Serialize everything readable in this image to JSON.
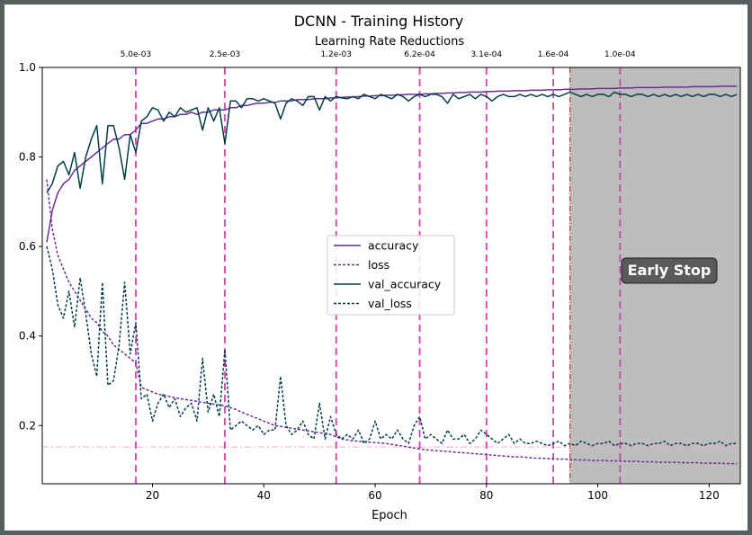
{
  "chart_data": {
    "type": "line",
    "title": "DCNN - Training History",
    "subtitle": "Learning Rate Reductions",
    "xlabel": "Epoch",
    "ylabel": "",
    "xlim": [
      0.2,
      125.6
    ],
    "ylim": [
      0.07,
      1.0
    ],
    "x_ticks": [
      20,
      40,
      60,
      80,
      100,
      120
    ],
    "y_ticks": [
      0.2,
      0.4,
      0.6,
      0.8,
      1.0
    ],
    "grid": false,
    "legend_position": "center",
    "reference_line": {
      "y": 0.152,
      "color": "#f4a6d0"
    },
    "early_stop": {
      "epoch": 95,
      "label": "Early Stop",
      "shade_color": "#bdbdbd",
      "label_bg": "#5a5a5a"
    },
    "lr_reductions": [
      {
        "epoch": 17,
        "label": "5.0e-03"
      },
      {
        "epoch": 33,
        "label": "2.5e-03"
      },
      {
        "epoch": 53,
        "label": "1.2e-03"
      },
      {
        "epoch": 68,
        "label": "6.2e-04"
      },
      {
        "epoch": 80,
        "label": "3.1e-04"
      },
      {
        "epoch": 92,
        "label": "1.6e-04"
      },
      {
        "epoch": 104,
        "label": "1.0e-04"
      }
    ],
    "lr_line_color": "#d63fb4",
    "x_start": 1,
    "series": [
      {
        "name": "accuracy",
        "color": "#6a2f93",
        "dash": "solid",
        "values": [
          0.61,
          0.68,
          0.72,
          0.74,
          0.75,
          0.77,
          0.78,
          0.79,
          0.8,
          0.81,
          0.82,
          0.83,
          0.84,
          0.84,
          0.85,
          0.85,
          0.86,
          0.875,
          0.875,
          0.88,
          0.885,
          0.885,
          0.89,
          0.89,
          0.895,
          0.895,
          0.9,
          0.895,
          0.9,
          0.9,
          0.905,
          0.905,
          0.905,
          0.91,
          0.91,
          0.915,
          0.915,
          0.918,
          0.92,
          0.92,
          0.922,
          0.922,
          0.925,
          0.925,
          0.925,
          0.928,
          0.928,
          0.928,
          0.93,
          0.93,
          0.93,
          0.932,
          0.932,
          0.933,
          0.934,
          0.934,
          0.935,
          0.936,
          0.936,
          0.937,
          0.937,
          0.938,
          0.938,
          0.939,
          0.939,
          0.94,
          0.94,
          0.94,
          0.941,
          0.941,
          0.942,
          0.942,
          0.943,
          0.943,
          0.944,
          0.944,
          0.945,
          0.945,
          0.945,
          0.946,
          0.946,
          0.947,
          0.947,
          0.947,
          0.948,
          0.948,
          0.948,
          0.949,
          0.949,
          0.949,
          0.95,
          0.95,
          0.95,
          0.951,
          0.951,
          0.951,
          0.952,
          0.952,
          0.952,
          0.953,
          0.953,
          0.953,
          0.953,
          0.954,
          0.954,
          0.954,
          0.955,
          0.955,
          0.955,
          0.955,
          0.955,
          0.956,
          0.956,
          0.956,
          0.956,
          0.956,
          0.957,
          0.957,
          0.957,
          0.957,
          0.957,
          0.958,
          0.958,
          0.958,
          0.958
        ]
      },
      {
        "name": "loss",
        "color": "#6a2f93",
        "dash": "dashed",
        "values": [
          0.75,
          0.64,
          0.58,
          0.55,
          0.52,
          0.5,
          0.48,
          0.46,
          0.44,
          0.43,
          0.41,
          0.4,
          0.38,
          0.37,
          0.36,
          0.35,
          0.34,
          0.285,
          0.28,
          0.275,
          0.27,
          0.268,
          0.265,
          0.262,
          0.26,
          0.258,
          0.256,
          0.254,
          0.252,
          0.25,
          0.248,
          0.246,
          0.244,
          0.24,
          0.236,
          0.23,
          0.225,
          0.22,
          0.215,
          0.21,
          0.205,
          0.2,
          0.198,
          0.196,
          0.194,
          0.192,
          0.19,
          0.188,
          0.186,
          0.184,
          0.182,
          0.18,
          0.175,
          0.17,
          0.168,
          0.166,
          0.165,
          0.164,
          0.163,
          0.162,
          0.161,
          0.16,
          0.158,
          0.156,
          0.154,
          0.152,
          0.15,
          0.148,
          0.146,
          0.145,
          0.144,
          0.143,
          0.142,
          0.141,
          0.14,
          0.139,
          0.138,
          0.137,
          0.136,
          0.135,
          0.134,
          0.133,
          0.132,
          0.131,
          0.13,
          0.13,
          0.129,
          0.128,
          0.127,
          0.127,
          0.126,
          0.126,
          0.125,
          0.125,
          0.124,
          0.124,
          0.123,
          0.123,
          0.122,
          0.122,
          0.122,
          0.121,
          0.121,
          0.121,
          0.12,
          0.12,
          0.12,
          0.119,
          0.119,
          0.119,
          0.118,
          0.118,
          0.118,
          0.118,
          0.117,
          0.117,
          0.117,
          0.117,
          0.116,
          0.116,
          0.116,
          0.116,
          0.115,
          0.115,
          0.115
        ]
      },
      {
        "name": "val_accuracy",
        "color": "#003f4a",
        "dash": "solid",
        "values": [
          0.72,
          0.74,
          0.78,
          0.79,
          0.76,
          0.81,
          0.73,
          0.8,
          0.84,
          0.87,
          0.74,
          0.87,
          0.87,
          0.82,
          0.75,
          0.85,
          0.81,
          0.88,
          0.89,
          0.91,
          0.905,
          0.88,
          0.9,
          0.89,
          0.91,
          0.9,
          0.905,
          0.91,
          0.86,
          0.91,
          0.88,
          0.91,
          0.83,
          0.925,
          0.925,
          0.91,
          0.93,
          0.93,
          0.925,
          0.93,
          0.925,
          0.92,
          0.885,
          0.92,
          0.93,
          0.925,
          0.915,
          0.935,
          0.935,
          0.905,
          0.935,
          0.925,
          0.935,
          0.932,
          0.93,
          0.935,
          0.93,
          0.94,
          0.935,
          0.93,
          0.94,
          0.935,
          0.93,
          0.94,
          0.935,
          0.925,
          0.935,
          0.94,
          0.935,
          0.94,
          0.94,
          0.935,
          0.92,
          0.94,
          0.93,
          0.935,
          0.94,
          0.93,
          0.94,
          0.935,
          0.925,
          0.935,
          0.94,
          0.935,
          0.935,
          0.94,
          0.935,
          0.94,
          0.935,
          0.94,
          0.935,
          0.94,
          0.935,
          0.94,
          0.945,
          0.94,
          0.935,
          0.94,
          0.935,
          0.94,
          0.94,
          0.935,
          0.945,
          0.94,
          0.94,
          0.935,
          0.94,
          0.94,
          0.935,
          0.94,
          0.935,
          0.94,
          0.935,
          0.94,
          0.935,
          0.94,
          0.935,
          0.94,
          0.935,
          0.94,
          0.94,
          0.935,
          0.94,
          0.935,
          0.94
        ]
      },
      {
        "name": "val_loss",
        "color": "#003f4a",
        "dash": "dashed",
        "values": [
          0.6,
          0.55,
          0.47,
          0.44,
          0.5,
          0.42,
          0.53,
          0.45,
          0.36,
          0.31,
          0.52,
          0.29,
          0.3,
          0.38,
          0.52,
          0.36,
          0.43,
          0.26,
          0.27,
          0.21,
          0.25,
          0.27,
          0.24,
          0.26,
          0.22,
          0.24,
          0.25,
          0.21,
          0.35,
          0.23,
          0.27,
          0.22,
          0.37,
          0.19,
          0.2,
          0.21,
          0.2,
          0.19,
          0.2,
          0.18,
          0.19,
          0.19,
          0.31,
          0.2,
          0.18,
          0.19,
          0.21,
          0.18,
          0.17,
          0.25,
          0.17,
          0.22,
          0.18,
          0.17,
          0.18,
          0.17,
          0.19,
          0.16,
          0.17,
          0.21,
          0.17,
          0.18,
          0.17,
          0.19,
          0.17,
          0.16,
          0.2,
          0.22,
          0.17,
          0.18,
          0.17,
          0.16,
          0.19,
          0.17,
          0.17,
          0.18,
          0.16,
          0.17,
          0.19,
          0.18,
          0.17,
          0.16,
          0.17,
          0.18,
          0.16,
          0.17,
          0.16,
          0.16,
          0.165,
          0.16,
          0.155,
          0.16,
          0.165,
          0.155,
          0.16,
          0.155,
          0.165,
          0.16,
          0.155,
          0.16,
          0.16,
          0.165,
          0.155,
          0.16,
          0.16,
          0.155,
          0.16,
          0.16,
          0.155,
          0.16,
          0.16,
          0.165,
          0.155,
          0.16,
          0.16,
          0.155,
          0.16,
          0.16,
          0.155,
          0.16,
          0.16,
          0.165,
          0.155,
          0.16,
          0.16
        ]
      }
    ]
  }
}
